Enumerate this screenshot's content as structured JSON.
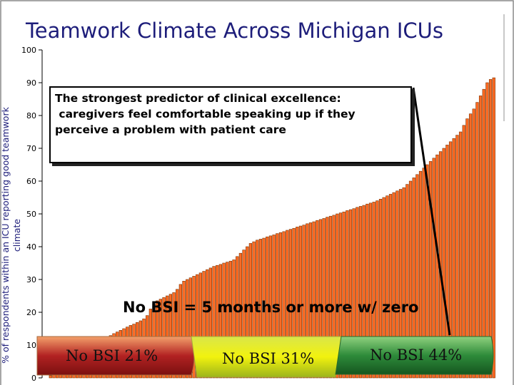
{
  "chart_data": {
    "type": "bar",
    "title": "Teamwork Climate Across Michigan ICUs",
    "ylabel": "% of respondents within an ICU reporting good teamwork climate",
    "xlabel": "",
    "ylim": [
      0,
      100
    ],
    "yticks": [
      0,
      10,
      20,
      30,
      40,
      50,
      60,
      70,
      80,
      90,
      100
    ],
    "grid": false,
    "series_color": "#ff6b24",
    "values": [
      0,
      0,
      0.7,
      1.1,
      1.6,
      2.2,
      3.0,
      3.9,
      4.8,
      5.7,
      6.6,
      7.3,
      8.0,
      8.7,
      9.4,
      10.0,
      10.6,
      11.2,
      11.8,
      12.4,
      12.9,
      13.5,
      14.0,
      14.5,
      15.0,
      15.5,
      16.0,
      16.4,
      16.9,
      17.4,
      18.0,
      19.0,
      21.0,
      22.5,
      23.5,
      24.0,
      24.5,
      25.0,
      25.5,
      26.0,
      27.0,
      28.5,
      29.5,
      30.0,
      30.5,
      31.0,
      31.5,
      32.0,
      32.5,
      33.0,
      33.5,
      34.0,
      34.3,
      34.6,
      35.0,
      35.3,
      35.6,
      36.0,
      37.0,
      38.0,
      39.0,
      40.0,
      41.0,
      41.5,
      42.0,
      42.3,
      42.6,
      43.0,
      43.3,
      43.6,
      44.0,
      44.3,
      44.6,
      45.0,
      45.3,
      45.6,
      46.0,
      46.3,
      46.6,
      47.0,
      47.3,
      47.6,
      48.0,
      48.3,
      48.6,
      49.0,
      49.3,
      49.6,
      50.0,
      50.3,
      50.6,
      51.0,
      51.3,
      51.6,
      52.0,
      52.3,
      52.6,
      53.0,
      53.3,
      53.6,
      54.0,
      54.5,
      55.0,
      55.5,
      56.0,
      56.5,
      57.0,
      57.5,
      58.0,
      59.0,
      60.0,
      61.0,
      62.0,
      63.0,
      64.0,
      65.0,
      66.0,
      67.0,
      68.0,
      69.0,
      70.0,
      71.0,
      72.0,
      73.0,
      74.0,
      75.0,
      77.0,
      79.0,
      80.5,
      82.0,
      84.0,
      86.0,
      88.0,
      90.0,
      91.0,
      91.5
    ],
    "annotations": {
      "callout": [
        "The strongest predictor of clinical excellence:",
        " caregivers feel comfortable speaking up if they",
        "perceive a problem with patient care"
      ],
      "note": "No BSI = 5 months or more w/ zero",
      "groups": [
        {
          "label": "No BSI 21%",
          "color": "#c0392b"
        },
        {
          "label": "No BSI 31%",
          "color": "#9acd32"
        },
        {
          "label": "No BSI 44%",
          "color": "#2e8b3a"
        }
      ]
    }
  }
}
